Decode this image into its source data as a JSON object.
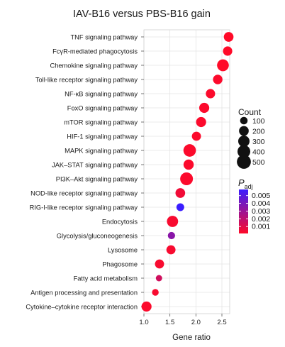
{
  "chart_data": {
    "type": "scatter",
    "title": "IAV-B16 versus PBS-B16 gain",
    "xlabel": "Gene ratio",
    "ylabel": "",
    "xlim": [
      1.0,
      2.65
    ],
    "xticks": [
      "1.0",
      "1.5",
      "2.0",
      "2.5"
    ],
    "xtick_values": [
      1.0,
      1.5,
      2.0,
      2.5
    ],
    "grid": true,
    "categories": [
      "TNF signaling pathway",
      "FcγR-mediated phagocytosis",
      "Chemokine signaling pathway",
      "Toll-like receptor signaling pathway",
      "NF-κB signaling pathway",
      "FoxO signaling pathway",
      "mTOR signaling pathway",
      "HIF-1 signaling pathway",
      "MAPK signaling pathway",
      "JAK–STAT signaling pathway",
      "PI3K–Akt signaling pathway",
      "NOD-like receptor signaling pathway",
      "RIG-I-like receptor signaling pathway",
      "Endocytosis",
      "Glycolysis/gluconeogenesis",
      "Lysosome",
      "Phagosome",
      "Fatty acid metabolism",
      "Antigen processing and presentation",
      "Cytokine–cytokine receptor interaction"
    ],
    "points": [
      {
        "x": 2.63,
        "count": 200,
        "padj": 0.0001
      },
      {
        "x": 2.61,
        "count": 180,
        "padj": 0.0001
      },
      {
        "x": 2.52,
        "count": 330,
        "padj": 0.0001
      },
      {
        "x": 2.42,
        "count": 190,
        "padj": 0.0002
      },
      {
        "x": 2.28,
        "count": 180,
        "padj": 0.0002
      },
      {
        "x": 2.16,
        "count": 220,
        "padj": 0.0002
      },
      {
        "x": 2.1,
        "count": 220,
        "padj": 0.0002
      },
      {
        "x": 2.01,
        "count": 170,
        "padj": 0.0002
      },
      {
        "x": 1.88,
        "count": 380,
        "padj": 0.0002
      },
      {
        "x": 1.86,
        "count": 230,
        "padj": 0.0002
      },
      {
        "x": 1.82,
        "count": 400,
        "padj": 0.0002
      },
      {
        "x": 1.7,
        "count": 200,
        "padj": 0.0005
      },
      {
        "x": 1.7,
        "count": 110,
        "padj": 0.0058
      },
      {
        "x": 1.55,
        "count": 290,
        "padj": 0.0003
      },
      {
        "x": 1.53,
        "count": 90,
        "padj": 0.0035
      },
      {
        "x": 1.52,
        "count": 170,
        "padj": 0.0003
      },
      {
        "x": 1.3,
        "count": 170,
        "padj": 0.0003
      },
      {
        "x": 1.29,
        "count": 60,
        "padj": 0.0015
      },
      {
        "x": 1.22,
        "count": 70,
        "padj": 0.0003
      },
      {
        "x": 1.05,
        "count": 220,
        "padj": 0.0002
      }
    ],
    "size_legend": {
      "title": "Count",
      "values": [
        100,
        200,
        300,
        400,
        500
      ],
      "labels": [
        "100",
        "200",
        "300",
        "400",
        "500"
      ]
    },
    "color_legend": {
      "title_main": "P",
      "title_sub": "adj",
      "ticks": [
        0.005,
        0.004,
        0.003,
        0.002,
        0.001
      ],
      "labels": [
        "0.005",
        "0.004",
        "0.003",
        "0.002",
        "0.001"
      ],
      "range": [
        0.0001,
        0.0058
      ],
      "low_color": "#ff0a28",
      "high_color": "#3a1dff"
    }
  }
}
